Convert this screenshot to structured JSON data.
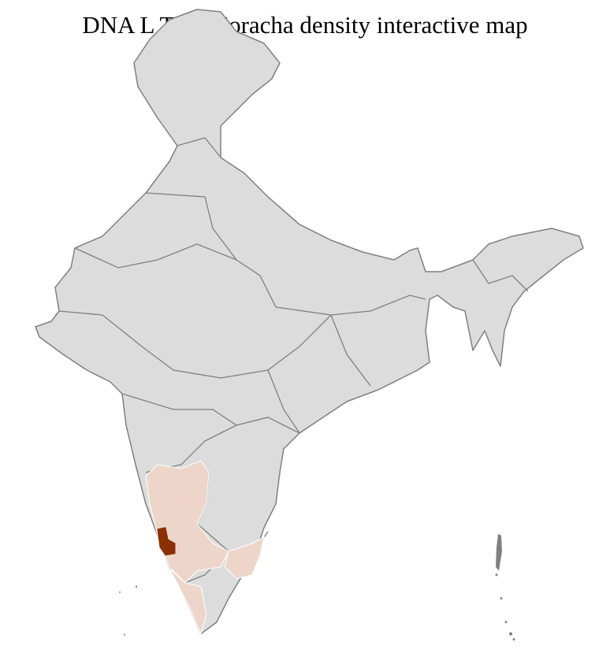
{
  "title": "DNA L Tulu Koracha density interactive map",
  "map": {
    "region": "India districts",
    "colors": {
      "no_data": "#dcdcdc",
      "low_density": "#edd6c9",
      "high_density": "#8b3003",
      "district_border": "#ffffff",
      "state_border": "#808080"
    },
    "highlighted": [
      {
        "area": "Dakshina Kannada / Udupi",
        "level": "high"
      },
      {
        "area": "Karnataka",
        "level": "low"
      },
      {
        "area": "Kerala",
        "level": "low"
      },
      {
        "area": "Tamil Nadu (parts)",
        "level": "low"
      }
    ]
  }
}
